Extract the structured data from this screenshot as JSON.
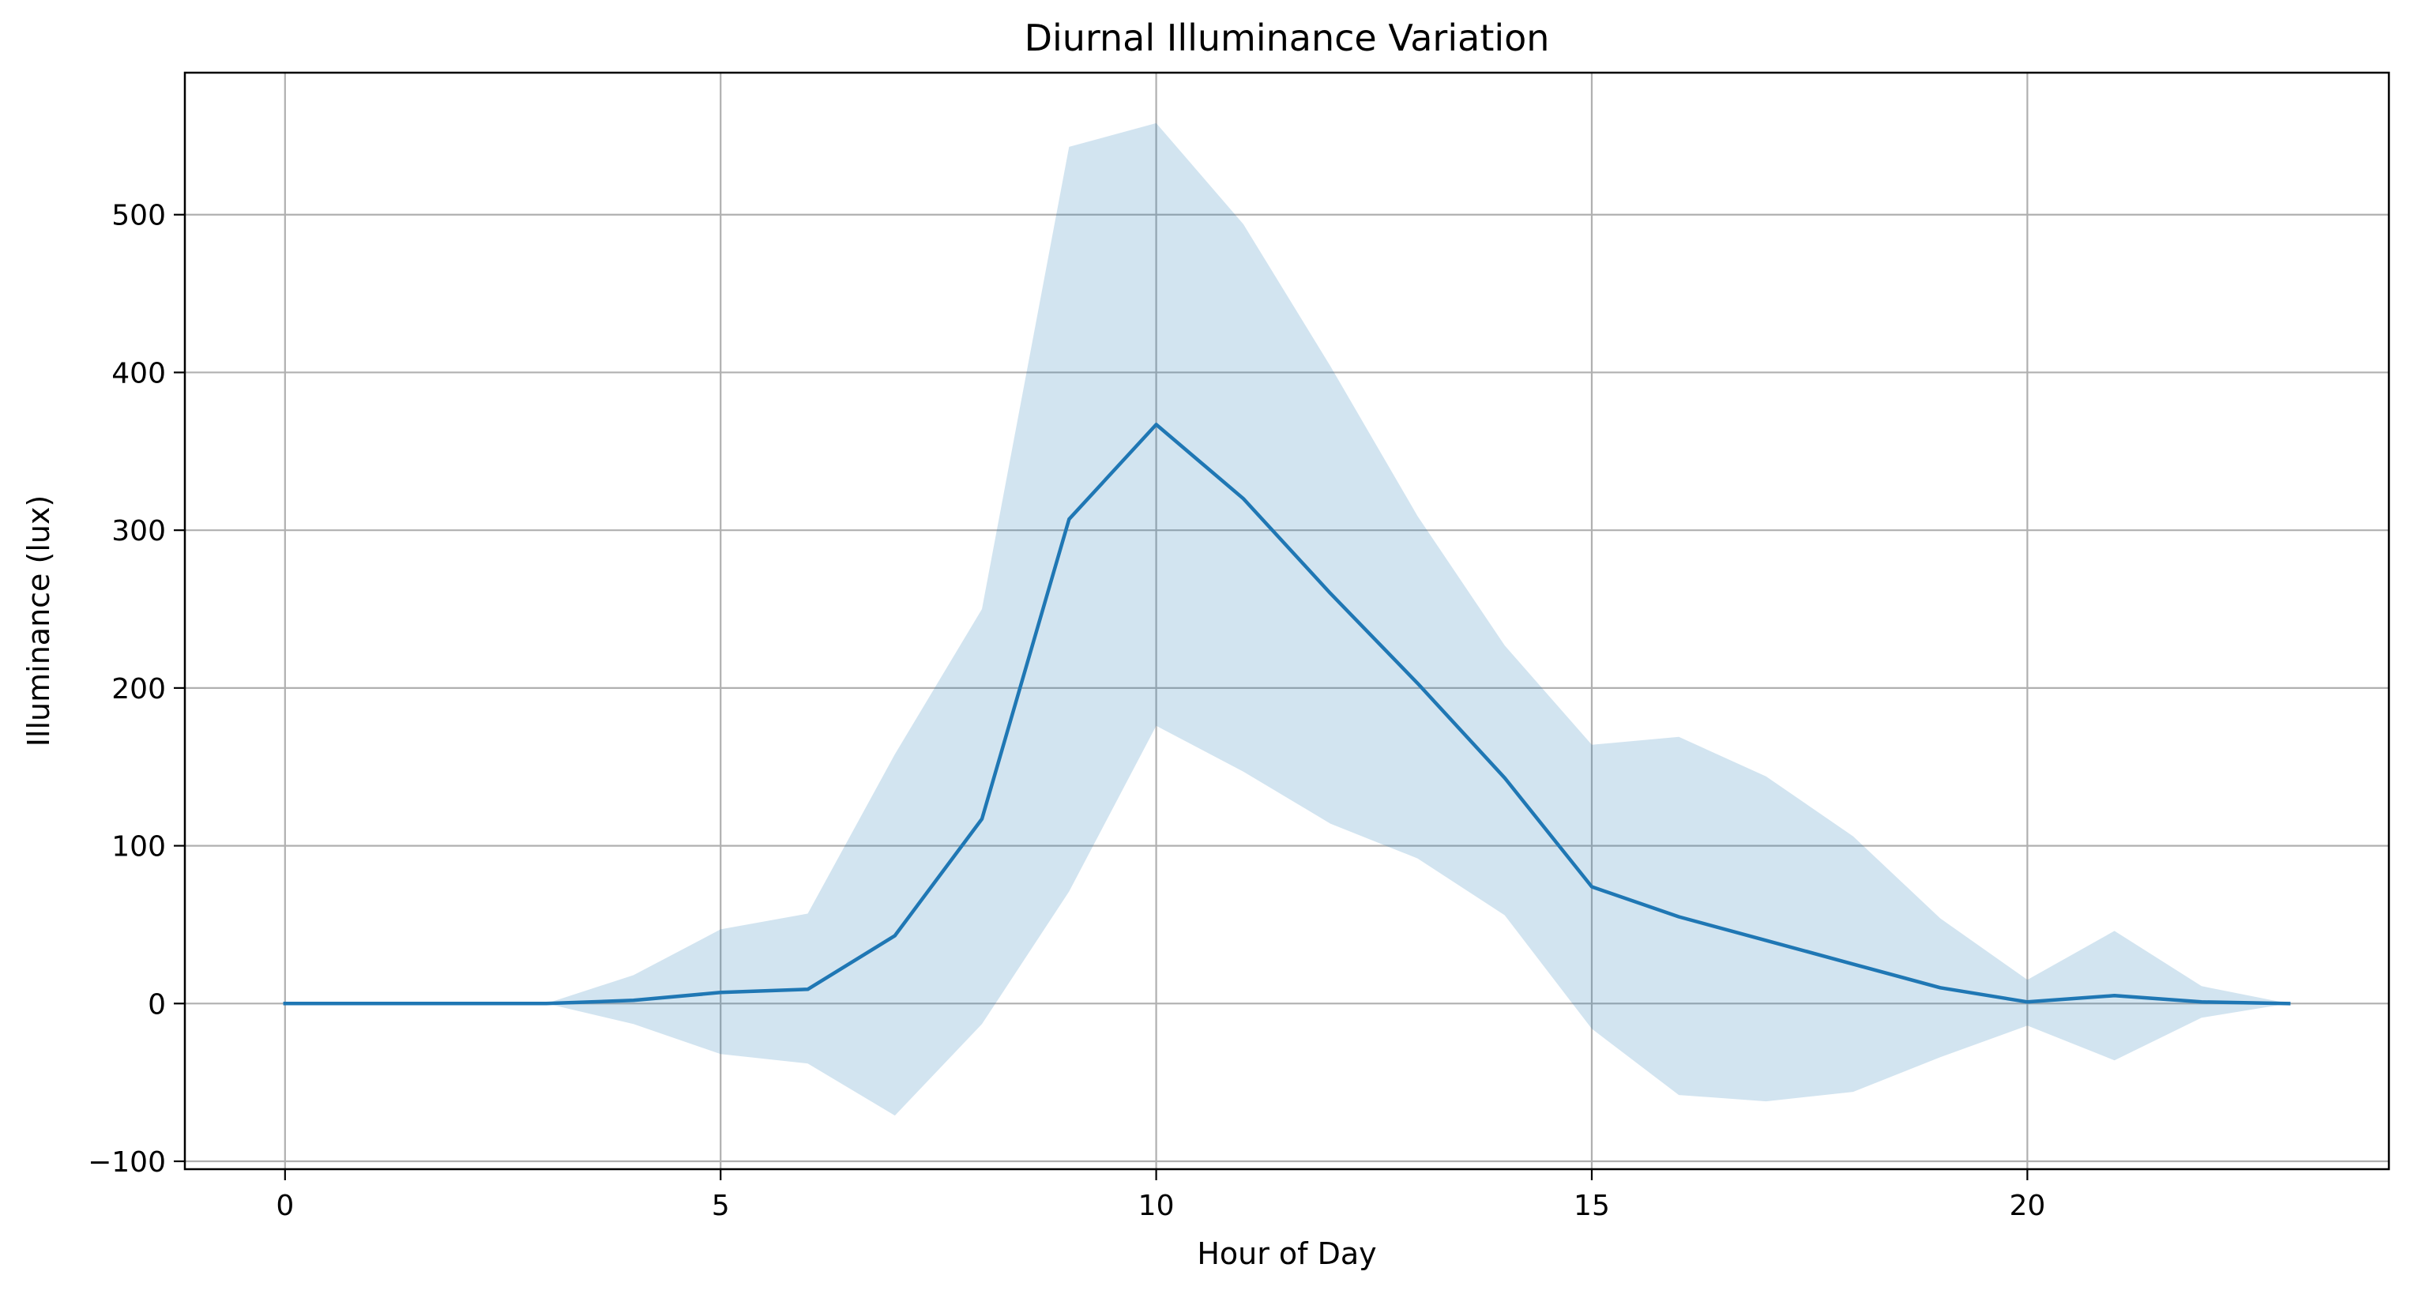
{
  "chart_data": {
    "type": "line",
    "title": "Diurnal Illuminance Variation",
    "xlabel": "Hour of Day",
    "ylabel": "Illuminance (lux)",
    "xlim": [
      -1.15,
      24.15
    ],
    "ylim": [
      -105,
      590
    ],
    "xticks": [
      0,
      5,
      10,
      15,
      20
    ],
    "yticks": [
      -100,
      0,
      100,
      200,
      300,
      400,
      500
    ],
    "xtick_labels": [
      "0",
      "5",
      "10",
      "15",
      "20"
    ],
    "ytick_labels": [
      "−100",
      "0",
      "100",
      "200",
      "300",
      "400",
      "500"
    ],
    "grid": true,
    "legend": "none",
    "x": [
      0,
      1,
      2,
      3,
      4,
      5,
      6,
      7,
      8,
      9,
      10,
      11,
      12,
      13,
      14,
      15,
      16,
      17,
      18,
      19,
      20,
      21,
      22,
      23
    ],
    "series": [
      {
        "values": [
          0,
          0,
          0,
          0,
          2,
          7,
          9,
          43,
          117,
          307,
          367,
          320,
          260,
          203,
          143,
          74,
          55,
          40,
          25,
          10,
          1,
          5,
          1,
          0
        ]
      }
    ],
    "band": {
      "lower": [
        0,
        0,
        0,
        0,
        -13,
        -32,
        -38,
        -71,
        -13,
        71,
        176,
        147,
        114,
        92,
        56,
        -16,
        -58,
        -62,
        -56,
        -34,
        -14,
        -36,
        -9,
        0
      ],
      "upper": [
        0,
        0,
        0,
        0,
        18,
        47,
        57,
        158,
        250,
        543,
        558,
        494,
        404,
        309,
        227,
        164,
        169,
        144,
        106,
        54,
        15,
        46,
        11,
        0
      ]
    },
    "colors": {
      "line": "#1f77b4",
      "band": "#1f77b4",
      "band_opacity": "0.2",
      "grid": "#b0b0b0",
      "axes": "#000000"
    }
  }
}
